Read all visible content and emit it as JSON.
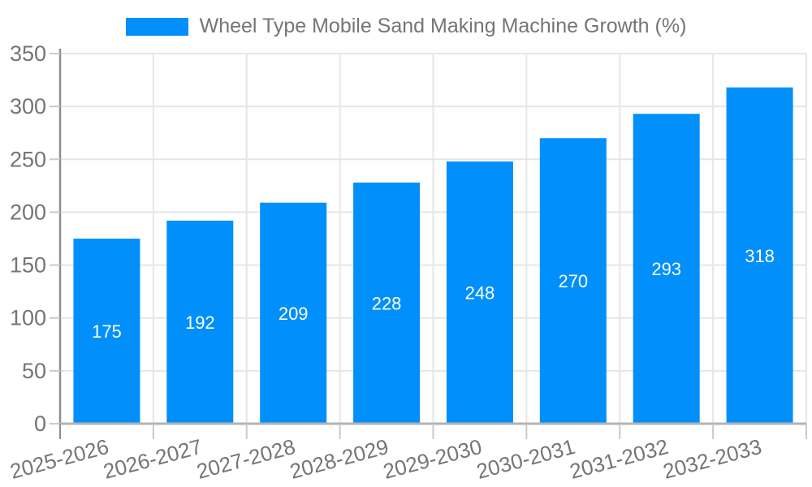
{
  "chart_data": {
    "type": "bar",
    "title": "",
    "legend": "Wheel Type Mobile Sand Making Machine Growth (%)",
    "legend_position": "top-center",
    "categories": [
      "2025-2026",
      "2026-2027",
      "2027-2028",
      "2028-2029",
      "2029-2030",
      "2030-2031",
      "2031-2032",
      "2032-2033"
    ],
    "values": [
      175,
      192,
      209,
      228,
      248,
      270,
      293,
      318
    ],
    "xlabel": "",
    "ylabel": "",
    "ylim": [
      0,
      350
    ],
    "ytick_step": 50,
    "ytick_labels": [
      "0",
      "50",
      "100",
      "150",
      "200",
      "250",
      "300",
      "350"
    ],
    "grid": true,
    "bar_label_position": "inside-center",
    "colors": {
      "bar": "#008ffb",
      "bar_label": "#ffffff",
      "axis_text": "#757575",
      "legend_text": "#757575",
      "grid_line": "#e6e6e6",
      "axis_line": "#8e8e8e",
      "baseline": "#b3b3b3",
      "tick": "#c9c9c9",
      "background": "#ffffff"
    }
  }
}
